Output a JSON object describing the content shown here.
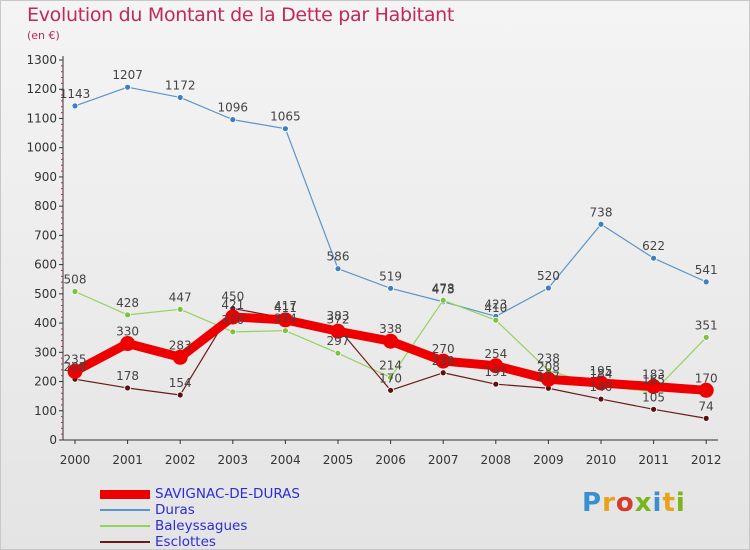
{
  "header": {
    "title": "Evolution du Montant de la Dette par Habitant",
    "subtitle": "(en €)"
  },
  "logo": {
    "text": "Proxiti",
    "colors": [
      "#3a8fd0",
      "#e8a21b",
      "#d83a2a",
      "#7ab51d",
      "#3a8fd0",
      "#e8a21b",
      "#7ab51d"
    ]
  },
  "chart_data": {
    "type": "line",
    "x": [
      "2000",
      "2001",
      "2002",
      "2003",
      "2004",
      "2005",
      "2006",
      "2007",
      "2008",
      "2009",
      "2010",
      "2011",
      "2012"
    ],
    "ylim": [
      0,
      1300
    ],
    "yticks": [
      0,
      100,
      200,
      300,
      400,
      500,
      600,
      700,
      800,
      900,
      1000,
      1100,
      1200,
      1300
    ],
    "grid": false,
    "legend": "bottom-left",
    "series": [
      {
        "name": "SAVIGNAC-DE-DURAS",
        "color": "#ee0000",
        "values": [
          235,
          330,
          283,
          421,
          411,
          372,
          338,
          270,
          254,
          208,
          195,
          183,
          170
        ]
      },
      {
        "name": "Duras",
        "color": "#5b94c9",
        "values": [
          1143,
          1207,
          1172,
          1096,
          1065,
          586,
          519,
          473,
          423,
          520,
          738,
          622,
          541
        ]
      },
      {
        "name": "Baleyssagues",
        "color": "#94d35a",
        "values": [
          508,
          428,
          447,
          370,
          374,
          297,
          214,
          478,
          410,
          238,
          184,
          165,
          351
        ]
      },
      {
        "name": "Esclottes",
        "color": "#6b1a1a",
        "values": [
          208,
          178,
          154,
          450,
          417,
          383,
          170,
          230,
          191,
          177,
          140,
          105,
          74
        ]
      }
    ]
  }
}
